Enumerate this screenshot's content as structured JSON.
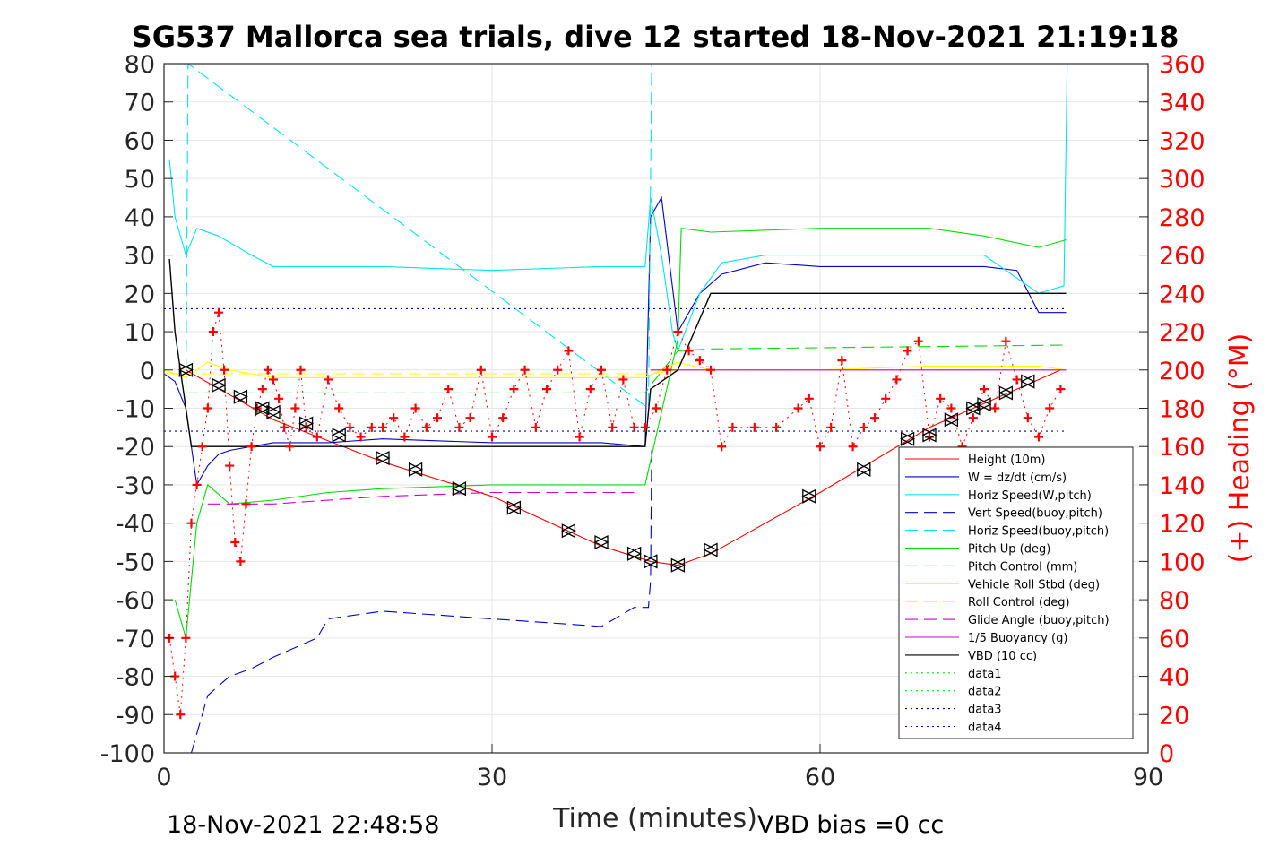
{
  "chart_data": {
    "type": "line",
    "title": "SG537 Mallorca sea trials, dive 12 started 18-Nov-2021 21:19:18",
    "xlabel": "Time (minutes)",
    "ylabel": "",
    "y2label": "(+) Heading (°M)",
    "xlim": [
      0,
      90
    ],
    "ylim": [
      -100,
      80
    ],
    "y2lim": [
      0,
      360
    ],
    "xticks": [
      "0",
      "30",
      "60",
      "90"
    ],
    "yticks": [
      "80",
      "70",
      "60",
      "50",
      "40",
      "30",
      "20",
      "10",
      "0",
      "-10",
      "-20",
      "-30",
      "-40",
      "-50",
      "-60",
      "-70",
      "-80",
      "-90",
      "-100"
    ],
    "y2ticks": [
      "360",
      "340",
      "320",
      "300",
      "280",
      "260",
      "240",
      "220",
      "200",
      "180",
      "160",
      "140",
      "120",
      "100",
      "80",
      "60",
      "40",
      "20",
      "0"
    ],
    "grid": true,
    "legend_position": "bottom-right",
    "footer_left": "18-Nov-2021 22:48:58",
    "footer_right": "VBD bias =0 cc",
    "series": [
      {
        "name": "Height (10m)",
        "color": "#ff0000",
        "style": "solid",
        "x": [
          2,
          10,
          20,
          30,
          40,
          44.5,
          47,
          50,
          60,
          70,
          82
        ],
        "y": [
          0,
          -13,
          -24,
          -33,
          -46,
          -50,
          -51,
          -48,
          -32,
          -15,
          0
        ]
      },
      {
        "name": "W = dz/dt (cm/s)",
        "color": "#0000cc",
        "style": "solid",
        "x": [
          0,
          1,
          2,
          2.5,
          3,
          4,
          5,
          6,
          8,
          10,
          15,
          20,
          30,
          40,
          44,
          44.5,
          45.5,
          47,
          49,
          51,
          55,
          60,
          65,
          70,
          75,
          78,
          80,
          82.5
        ],
        "y": [
          -1,
          -3,
          -10,
          -20,
          -30,
          -25,
          -22,
          -21,
          -20,
          -19,
          -19,
          -18,
          -19,
          -19,
          -20,
          40,
          45,
          10,
          20,
          25,
          28,
          27,
          27,
          27,
          27,
          26,
          15,
          15
        ]
      },
      {
        "name": "Horiz Speed(W,pitch)",
        "color": "#00e5e5",
        "style": "solid",
        "x": [
          0.5,
          1,
          2,
          3,
          5,
          8,
          10,
          15,
          20,
          30,
          40,
          44,
          44.5,
          45.5,
          46.5,
          47,
          49,
          51,
          55,
          60,
          65,
          70,
          75,
          80,
          82.3,
          82.6
        ],
        "y": [
          55,
          40,
          30,
          37,
          35,
          30,
          27,
          27,
          27,
          26,
          27,
          27,
          45,
          30,
          10,
          5,
          20,
          28,
          30,
          30,
          30,
          30,
          30,
          20,
          22,
          80
        ]
      },
      {
        "name": "Vert Speed(buoy,pitch)",
        "color": "#0000cc",
        "style": "dashed",
        "x": [
          2.5,
          4,
          6,
          8,
          10,
          14,
          15,
          20,
          25,
          30,
          35,
          40,
          43,
          44.3,
          44.5,
          44.6
        ],
        "y": [
          -100,
          -85,
          -80,
          -78,
          -75,
          -70,
          -65,
          -63,
          -64,
          -65,
          -66,
          -67,
          -62,
          -62,
          -55,
          -20
        ]
      },
      {
        "name": "Horiz Speed(buoy,pitch)",
        "color": "#00e5e5",
        "style": "dashed",
        "x": [
          2,
          2.2,
          44.3,
          44.6
        ],
        "y": [
          -10,
          80,
          -10,
          80
        ]
      },
      {
        "name": "Pitch Up (deg)",
        "color": "#00dd00",
        "style": "solid",
        "x": [
          1,
          2,
          3,
          4,
          6,
          10,
          15,
          20,
          30,
          40,
          44,
          47,
          47.3,
          50,
          60,
          70,
          75,
          80,
          82.5
        ],
        "y": [
          -60,
          -70,
          -40,
          -30,
          -35,
          -34,
          -32,
          -31,
          -30,
          -30,
          -30,
          8,
          37,
          36,
          37,
          37,
          35,
          32,
          34
        ]
      },
      {
        "name": "Pitch Control (mm)",
        "color": "#00dd00",
        "style": "dashed",
        "x": [
          2,
          44,
          44.5,
          47,
          50,
          82.5
        ],
        "y": [
          -6,
          -6,
          -4,
          5,
          5.5,
          6.5
        ]
      },
      {
        "name": "Vehicle Roll Stbd (deg)",
        "color": "#ffff00",
        "style": "solid",
        "x": [
          0,
          2,
          4,
          6,
          10,
          20,
          30,
          40,
          44,
          47,
          50,
          60,
          70,
          80,
          82.5
        ],
        "y": [
          0,
          -2,
          2,
          0,
          -2,
          -2,
          -2,
          -2,
          -2,
          2,
          0,
          0,
          1,
          1,
          0
        ]
      },
      {
        "name": "Roll Control (deg)",
        "color": "#ffff00",
        "style": "dashed",
        "x": [
          0,
          44.5,
          47,
          82.5
        ],
        "y": [
          -1,
          -1,
          0,
          0
        ]
      },
      {
        "name": "Glide Angle (buoy,pitch)",
        "color": "#cc00cc",
        "style": "dashed",
        "x": [
          4,
          10,
          20,
          30,
          40,
          43
        ],
        "y": [
          -35,
          -35,
          -33,
          -32,
          -32,
          -32
        ]
      },
      {
        "name": "1/5 Buoyancy (g)",
        "color": "#cc00cc",
        "style": "solid",
        "x": [
          44.5,
          82.5
        ],
        "y": [
          0,
          0
        ]
      },
      {
        "name": "VBD (10 cc)",
        "color": "#000000",
        "style": "solid",
        "x": [
          0.5,
          1,
          1.5,
          2,
          2.5,
          44,
          44.5,
          47,
          50,
          82.5
        ],
        "y": [
          29,
          10,
          0,
          -10,
          -20,
          -20,
          -5,
          0,
          20,
          20
        ]
      },
      {
        "name": "data1",
        "color": "#00dd00",
        "style": "dotted",
        "x": [],
        "y": []
      },
      {
        "name": "data2",
        "color": "#00dd00",
        "style": "dotted",
        "x": [],
        "y": []
      },
      {
        "name": "data3",
        "color": "#000080",
        "style": "dotted",
        "x": [
          0,
          82.5
        ],
        "y": [
          -16,
          -16
        ]
      },
      {
        "name": "data4",
        "color": "#0000cc",
        "style": "dotted",
        "x": [
          0,
          82.5
        ],
        "y": [
          16,
          16
        ]
      }
    ],
    "heading_series": {
      "name": "Heading",
      "axis": "right",
      "color": "#ff0000",
      "marker": "+",
      "x": [
        0.5,
        1,
        1.5,
        2,
        2.5,
        3,
        3.5,
        4,
        4.5,
        5,
        5.5,
        6,
        6.5,
        7,
        7.5,
        8,
        8.5,
        9,
        9.5,
        10,
        10.5,
        11,
        11.5,
        12,
        12.5,
        13,
        14,
        15,
        16,
        17,
        18,
        19,
        20,
        21,
        22,
        23,
        24,
        25,
        26,
        27,
        28,
        29,
        30,
        31,
        32,
        33,
        34,
        35,
        36,
        37,
        38,
        39,
        40,
        41,
        42,
        43,
        44,
        45,
        46,
        47,
        48,
        49,
        50,
        51,
        52,
        54,
        56,
        58,
        59,
        60,
        61,
        62,
        63,
        64,
        65,
        66,
        67,
        68,
        69,
        70,
        71,
        72,
        73,
        74,
        75,
        76,
        77,
        78,
        79,
        80,
        81,
        82
      ],
      "y": [
        60,
        40,
        20,
        60,
        120,
        140,
        160,
        180,
        220,
        230,
        200,
        150,
        110,
        100,
        130,
        160,
        180,
        190,
        200,
        195,
        185,
        170,
        160,
        180,
        200,
        170,
        165,
        195,
        180,
        170,
        165,
        170,
        170,
        175,
        165,
        180,
        170,
        175,
        190,
        170,
        175,
        200,
        165,
        175,
        190,
        200,
        170,
        190,
        200,
        210,
        165,
        190,
        200,
        170,
        195,
        170,
        170,
        180,
        200,
        220,
        210,
        205,
        200,
        160,
        170,
        170,
        170,
        180,
        185,
        160,
        170,
        205,
        160,
        170,
        175,
        185,
        195,
        210,
        215,
        165,
        185,
        180,
        160,
        175,
        190,
        180,
        215,
        195,
        175,
        165,
        180,
        190
      ]
    },
    "markers": {
      "name": "Height markers",
      "x": [
        2,
        5,
        7,
        9,
        10,
        13,
        16,
        20,
        23,
        27,
        32,
        37,
        40,
        43,
        44.5,
        47,
        50,
        59,
        64,
        68,
        70,
        72,
        74,
        75,
        77,
        79
      ],
      "y": [
        0,
        -4,
        -7,
        -10,
        -11,
        -14,
        -17,
        -23,
        -26,
        -31,
        -36,
        -42,
        -45,
        -48,
        -50,
        -51,
        -47,
        -33,
        -26,
        -18,
        -17,
        -13,
        -10,
        -9,
        -6,
        -3
      ]
    }
  }
}
